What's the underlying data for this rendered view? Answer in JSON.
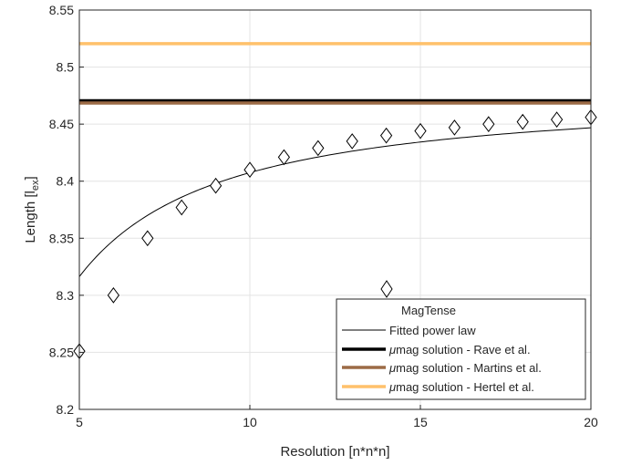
{
  "chart_data": {
    "type": "line",
    "xlabel": "Resolution [n*n*n]",
    "ylabel": {
      "main": "Length [l",
      "sub": "ex",
      "close": "]"
    },
    "xlim": [
      5,
      20
    ],
    "ylim": [
      8.2,
      8.55
    ],
    "xticks": [
      5,
      10,
      15,
      20
    ],
    "yticks": [
      8.2,
      8.25,
      8.3,
      8.35,
      8.4,
      8.45,
      8.5,
      8.55
    ],
    "grid": true,
    "legend_position": "bottom-right",
    "series": [
      {
        "name": "MagTense",
        "kind": "markers",
        "marker": "diamond",
        "color": "#000000",
        "x": [
          5,
          6,
          7,
          8,
          9,
          10,
          11,
          12,
          13,
          14,
          15,
          16,
          17,
          18,
          19,
          20
        ],
        "y": [
          8.251,
          8.3,
          8.35,
          8.377,
          8.396,
          8.41,
          8.421,
          8.429,
          8.435,
          8.44,
          8.444,
          8.447,
          8.45,
          8.452,
          8.454,
          8.456
        ]
      },
      {
        "name": "Fitted power law",
        "kind": "curve",
        "color": "#000000",
        "fit": {
          "a": 8.4766,
          "b": -1.129,
          "c": -1.213
        }
      },
      {
        "name": "solution - Rave et al.",
        "kind": "hline",
        "y": 8.4705,
        "color": "#000000"
      },
      {
        "name": "solution - Martins et al.",
        "kind": "hline",
        "y": 8.4685,
        "color": "#9c6b46"
      },
      {
        "name": "solution - Hertel et al.",
        "kind": "hline",
        "y": 8.5205,
        "color": "#ffc16b"
      }
    ],
    "legend_prefix_symbol": "μ",
    "legend_prefix_word": "mag"
  }
}
